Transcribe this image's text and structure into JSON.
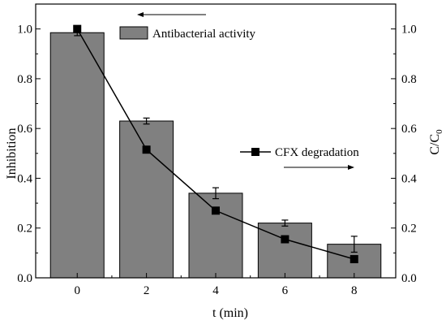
{
  "chart_data": {
    "type": "bar",
    "categories": [
      "0",
      "2",
      "4",
      "6",
      "8"
    ],
    "x": [
      0,
      2,
      4,
      6,
      8
    ],
    "xlabel": "t (min)",
    "ylabel_left": "Inhibition",
    "ylabel_right_base": "C/C",
    "ylabel_right_sub": "0",
    "xlim": [
      -1.2,
      9.2
    ],
    "ylim_left": [
      0,
      1.1
    ],
    "ylim_right": [
      0,
      1.1
    ],
    "yticks_left": [
      0.0,
      0.2,
      0.4,
      0.6,
      0.8,
      1.0
    ],
    "yticks_right": [
      0.0,
      0.2,
      0.4,
      0.6,
      0.8,
      1.0
    ],
    "series": [
      {
        "name": "Antibacterial activity",
        "type": "bar",
        "axis": "left",
        "values": [
          0.985,
          0.63,
          0.34,
          0.22,
          0.135
        ],
        "errors": [
          0.012,
          0.012,
          0.022,
          0.012,
          0.032
        ],
        "color": "#808080"
      },
      {
        "name": "CFX degradation",
        "type": "line",
        "axis": "right",
        "marker": "square",
        "values": [
          1.0,
          0.515,
          0.27,
          0.155,
          0.075
        ],
        "color": "#000000"
      }
    ],
    "legend": "inside, top-center",
    "grid": false
  }
}
